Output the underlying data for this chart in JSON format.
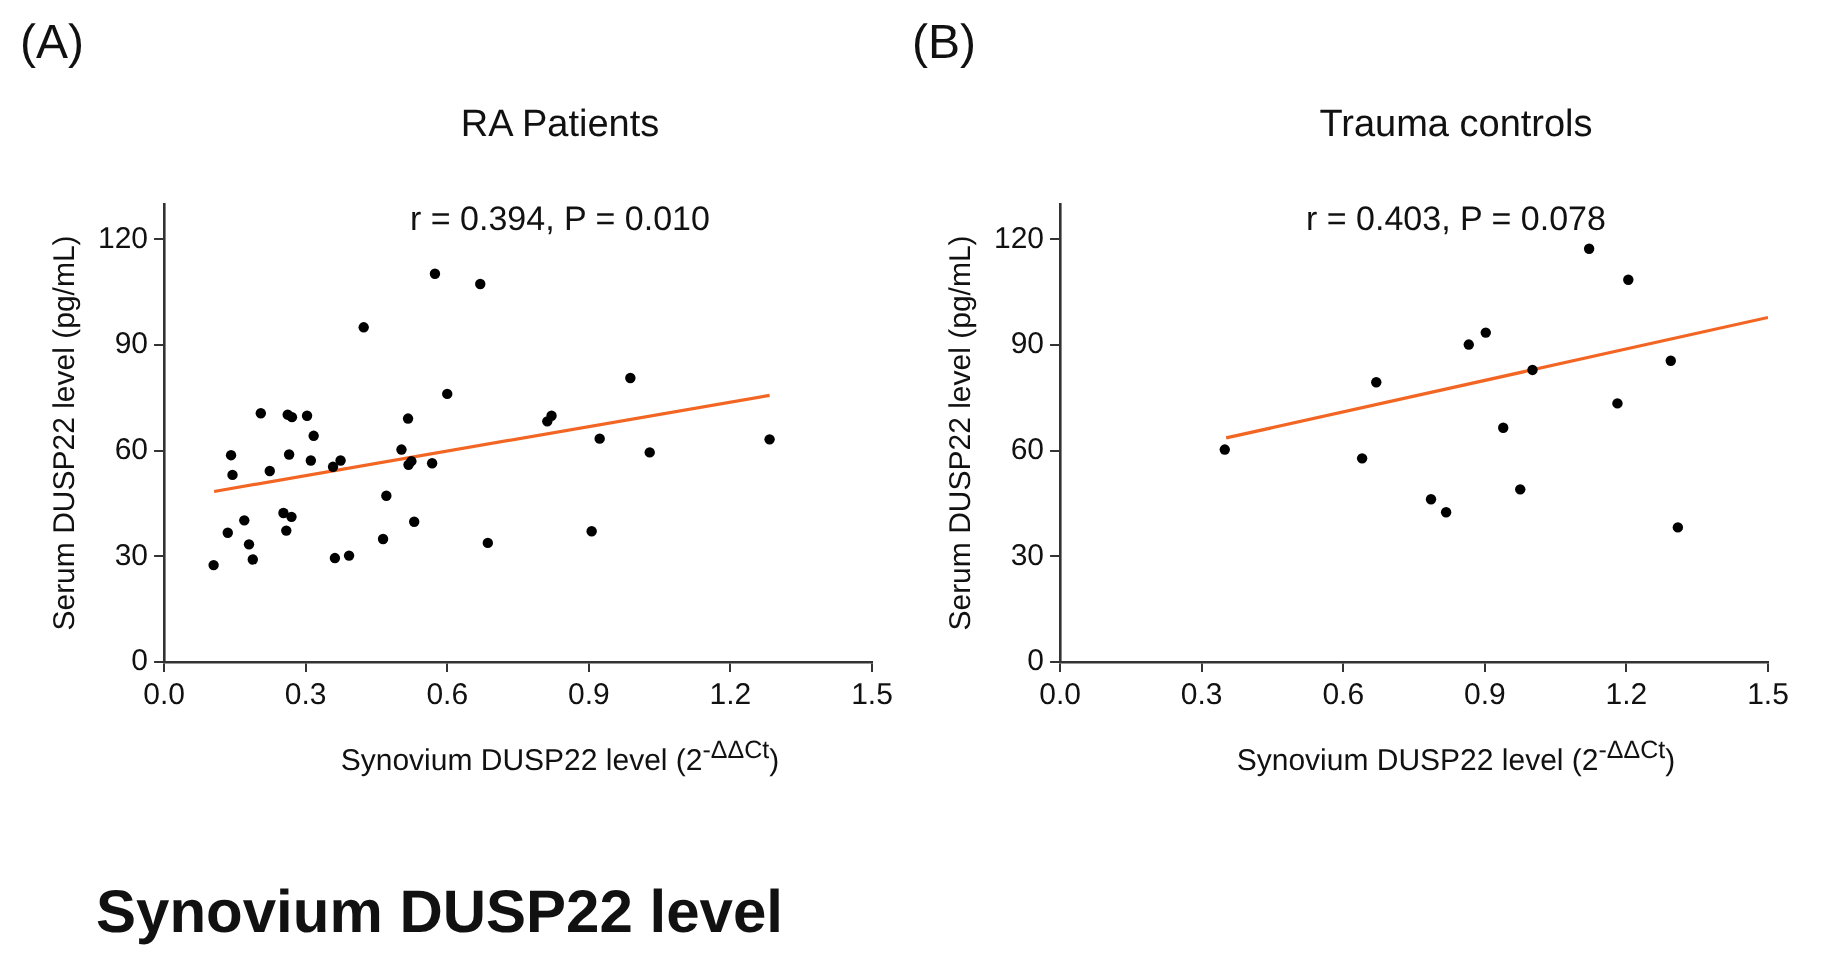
{
  "chart_data": [
    {
      "type": "scatter",
      "title": "RA Patients",
      "xlabel": "Synovium DUSP22 level (2$^{-ΔΔCt}$)",
      "ylabel": "Serum DUSP22 level (pg/mL)",
      "annotations": [
        "(A)",
        "r = 0.394, P = 0.010"
      ],
      "xlim": [
        0,
        1.5
      ],
      "xticks": [
        {
          "value": 0,
          "label": "0.0"
        },
        {
          "value": 0.3,
          "label": "0.3"
        },
        {
          "value": 0.6,
          "label": "0.6"
        },
        {
          "value": 0.9,
          "label": "0.9"
        },
        {
          "value": 1.2,
          "label": "1.2"
        },
        {
          "value": 1.5,
          "label": "1.5"
        }
      ],
      "ylim": [
        0,
        130
      ],
      "yticks": [
        0,
        30,
        60,
        90,
        120
      ],
      "grid": false,
      "legend": false,
      "series": [
        {
          "marker": "circle",
          "color": "#000000",
          "x": [
            0.105,
            0.135,
            0.142,
            0.145,
            0.17,
            0.18,
            0.188,
            0.205,
            0.224,
            0.253,
            0.259,
            0.265,
            0.262,
            0.27,
            0.271,
            0.303,
            0.311,
            0.317,
            0.358,
            0.362,
            0.374,
            0.392,
            0.423,
            0.464,
            0.471,
            0.503,
            0.517,
            0.518,
            0.524,
            0.53,
            0.568,
            0.574,
            0.6,
            0.67,
            0.686,
            0.812,
            0.821,
            0.906,
            0.923,
            0.988,
            1.029,
            1.283
          ],
          "values": [
            27.5,
            36.7,
            58.7,
            53.1,
            40.2,
            33.4,
            29.1,
            70.6,
            54.2,
            42.3,
            37.3,
            58.9,
            70.2,
            41.2,
            69.5,
            69.9,
            57.2,
            64.2,
            55.4,
            29.5,
            57.2,
            30.2,
            95.0,
            34.9,
            47.2,
            60.3,
            69.1,
            56.0,
            57.0,
            39.8,
            56.4,
            110.2,
            76.1,
            107.3,
            33.8,
            68.3,
            69.9,
            37.1,
            63.4,
            80.6,
            59.5,
            63.2
          ]
        },
        {
          "type": "line",
          "marker": "none",
          "color": "#f26522",
          "x": [
            0.106,
            1.283
          ],
          "values": [
            48.4,
            75.7
          ]
        }
      ]
    },
    {
      "type": "scatter",
      "title": "Trauma controls",
      "xlabel": "Synovium DUSP22 level (2$^{-ΔΔCt}$)",
      "ylabel": "Serum DUSP22 level (pg/mL)",
      "annotations": [
        "(B)",
        "r = 0.403, P = 0.078",
        "Synovium DUSP22 level"
      ],
      "xlim": [
        0,
        1.5
      ],
      "xticks": [
        {
          "value": 0,
          "label": "0.0"
        },
        {
          "value": 0.3,
          "label": "0.3"
        },
        {
          "value": 0.6,
          "label": "0.6"
        },
        {
          "value": 0.9,
          "label": "0.9"
        },
        {
          "value": 1.2,
          "label": "1.2"
        },
        {
          "value": 1.5,
          "label": "1.5"
        }
      ],
      "ylim": [
        0,
        130
      ],
      "yticks": [
        0,
        30,
        60,
        90,
        120
      ],
      "grid": false,
      "legend": false,
      "series": [
        {
          "marker": "circle",
          "color": "#000000",
          "x": [
            0.349,
            0.64,
            0.67,
            0.786,
            0.818,
            0.866,
            0.902,
            0.939,
            0.975,
            1.001,
            1.121,
            1.181,
            1.204,
            1.294,
            1.309
          ],
          "values": [
            60.3,
            57.8,
            79.4,
            46.2,
            42.5,
            90.1,
            93.5,
            66.5,
            49.0,
            82.9,
            117.3,
            73.4,
            108.5,
            85.5,
            38.2
          ]
        },
        {
          "type": "line",
          "marker": "none",
          "color": "#f26522",
          "x": [
            0.352,
            1.5
          ],
          "values": [
            63.6,
            97.8
          ]
        }
      ]
    }
  ]
}
